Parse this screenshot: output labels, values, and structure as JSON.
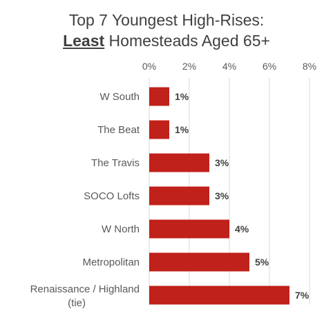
{
  "chart_data": {
    "type": "bar",
    "orientation": "horizontal",
    "title_line1": "Top 7 Youngest High-Rises:",
    "title_line2_emphasis": "Least",
    "title_line2_rest": " Homesteads Aged 65+",
    "categories": [
      "W South",
      "The Beat",
      "The Travis",
      "SOCO Lofts",
      "W North",
      "Metropolitan",
      "Renaissance / Highland (tie)"
    ],
    "values": [
      1,
      1,
      3,
      3,
      4,
      5,
      7
    ],
    "data_labels": [
      "1%",
      "1%",
      "3%",
      "3%",
      "4%",
      "5%",
      "7%"
    ],
    "xlim": [
      0,
      8
    ],
    "x_ticks": [
      "0%",
      "2%",
      "4%",
      "6%",
      "8%"
    ],
    "x_axis_position": "top",
    "grid": true,
    "bar_color": "#C0211A",
    "grid_color": "#D9D9D9"
  }
}
